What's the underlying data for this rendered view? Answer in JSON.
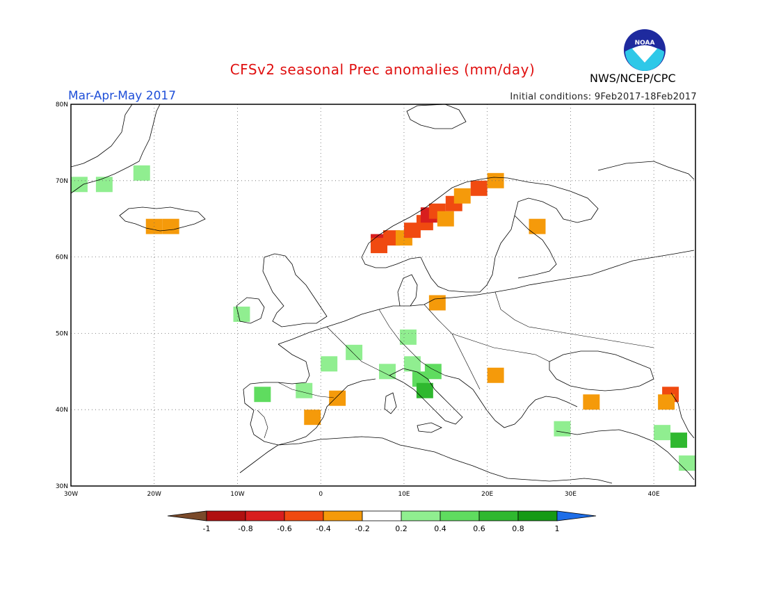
{
  "header": {
    "title": "CFSv2 seasonal Prec anomalies (mm/day)",
    "season": "Mar-Apr-May 2017",
    "initial_conditions": "Initial conditions: 9Feb2017-18Feb2017",
    "agency": "NWS/NCEP/CPC",
    "logo_text": "NOAA"
  },
  "map": {
    "lon_range": [
      -30,
      45
    ],
    "lat_range": [
      30,
      80
    ],
    "lat_ticks": [
      "30N",
      "40N",
      "50N",
      "60N",
      "70N",
      "80N"
    ],
    "lon_ticks": [
      "30W",
      "20W",
      "10W",
      "0",
      "10E",
      "20E",
      "30E",
      "40E"
    ],
    "grid": "dotted"
  },
  "colorbar": {
    "labels": [
      "-1",
      "-0.8",
      "-0.6",
      "-0.4",
      "-0.2",
      "0.2",
      "0.4",
      "0.6",
      "0.8",
      "1"
    ],
    "colors": [
      "#7a4a2a",
      "#b01010",
      "#d81e1e",
      "#f04a10",
      "#f59a0a",
      "#ffffff",
      "#90ee90",
      "#5fdc5f",
      "#2fb82f",
      "#159a15",
      "#1e6ee8"
    ]
  },
  "chart_data": {
    "type": "heatmap",
    "units": "mm/day",
    "cells": [
      {
        "lon": -29,
        "lat": 69.5,
        "bin": "0.2..0.4"
      },
      {
        "lon": -26,
        "lat": 69.5,
        "bin": "0.2..0.4"
      },
      {
        "lon": -21.5,
        "lat": 71,
        "bin": "0.2..0.4"
      },
      {
        "lon": -20,
        "lat": 64,
        "bin": "-0.4..-0.2"
      },
      {
        "lon": -18,
        "lat": 64,
        "bin": "-0.4..-0.2"
      },
      {
        "lon": -9.5,
        "lat": 52.5,
        "bin": "0.2..0.4"
      },
      {
        "lon": 7,
        "lat": 62,
        "bin": "-0.8..-0.6"
      },
      {
        "lon": 7,
        "lat": 61.5,
        "bin": "-0.6..-0.4"
      },
      {
        "lon": 8.5,
        "lat": 62.5,
        "bin": "-0.6..-0.4"
      },
      {
        "lon": 10,
        "lat": 62.5,
        "bin": "-0.4..-0.2"
      },
      {
        "lon": 11,
        "lat": 63.5,
        "bin": "-0.6..-0.4"
      },
      {
        "lon": 12.5,
        "lat": 64.5,
        "bin": "-0.6..-0.4"
      },
      {
        "lon": 13,
        "lat": 65.5,
        "bin": "-0.8..-0.6"
      },
      {
        "lon": 14,
        "lat": 66,
        "bin": "-0.6..-0.4"
      },
      {
        "lon": 15,
        "lat": 65,
        "bin": "-0.4..-0.2"
      },
      {
        "lon": 16,
        "lat": 67,
        "bin": "-0.6..-0.4"
      },
      {
        "lon": 17,
        "lat": 68,
        "bin": "-0.4..-0.2"
      },
      {
        "lon": 19,
        "lat": 69,
        "bin": "-0.6..-0.4"
      },
      {
        "lon": 21,
        "lat": 70,
        "bin": "-0.4..-0.2"
      },
      {
        "lon": 26,
        "lat": 64,
        "bin": "-0.4..-0.2"
      },
      {
        "lon": 14,
        "lat": 54,
        "bin": "-0.4..-0.2"
      },
      {
        "lon": 10.5,
        "lat": 49.5,
        "bin": "0.2..0.4"
      },
      {
        "lon": 4,
        "lat": 47.5,
        "bin": "0.2..0.4"
      },
      {
        "lon": 1,
        "lat": 46,
        "bin": "0.2..0.4"
      },
      {
        "lon": 8,
        "lat": 45,
        "bin": "0.2..0.4"
      },
      {
        "lon": 11,
        "lat": 46,
        "bin": "0.2..0.4"
      },
      {
        "lon": 12,
        "lat": 44,
        "bin": "0.4..0.6"
      },
      {
        "lon": 12.5,
        "lat": 42.5,
        "bin": "0.6..0.8"
      },
      {
        "lon": 13.5,
        "lat": 45,
        "bin": "0.4..0.6"
      },
      {
        "lon": 21,
        "lat": 44.5,
        "bin": "-0.4..-0.2"
      },
      {
        "lon": -7,
        "lat": 42,
        "bin": "0.4..0.6"
      },
      {
        "lon": -2,
        "lat": 42.5,
        "bin": "0.2..0.4"
      },
      {
        "lon": 2,
        "lat": 41.5,
        "bin": "-0.4..-0.2"
      },
      {
        "lon": -1,
        "lat": 39,
        "bin": "-0.4..-0.2"
      },
      {
        "lon": 32.5,
        "lat": 41,
        "bin": "-0.4..-0.2"
      },
      {
        "lon": 42,
        "lat": 42,
        "bin": "-0.6..-0.4"
      },
      {
        "lon": 41.5,
        "lat": 41,
        "bin": "-0.4..-0.2"
      },
      {
        "lon": 29,
        "lat": 37.5,
        "bin": "0.2..0.4"
      },
      {
        "lon": 41,
        "lat": 37,
        "bin": "0.2..0.4"
      },
      {
        "lon": 43,
        "lat": 36,
        "bin": "0.6..0.8"
      },
      {
        "lon": 44,
        "lat": 33,
        "bin": "0.2..0.4"
      }
    ]
  }
}
